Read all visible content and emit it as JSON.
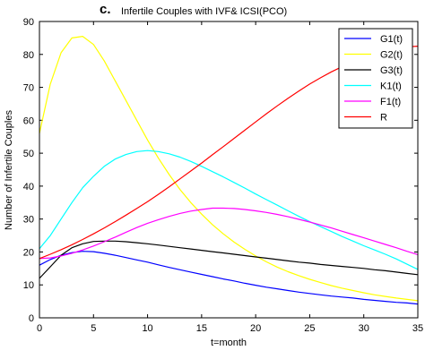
{
  "chart_data": {
    "type": "line",
    "panel_letter": "c.",
    "title": "Infertile Couples with  IVF& ICSI(PCO)",
    "xlabel": "t=month",
    "ylabel": "Number of Infertile Couples",
    "xlim": [
      0,
      35
    ],
    "ylim": [
      0,
      90
    ],
    "x_ticks": [
      0,
      5,
      10,
      15,
      20,
      25,
      30,
      35
    ],
    "y_ticks": [
      0,
      10,
      20,
      30,
      40,
      50,
      60,
      70,
      80,
      90
    ],
    "grid": false,
    "legend_position": "top-right",
    "x": [
      0,
      1,
      2,
      3,
      4,
      5,
      6,
      7,
      8,
      9,
      10,
      11,
      12,
      13,
      14,
      15,
      16,
      17,
      18,
      19,
      20,
      21,
      22,
      23,
      24,
      25,
      26,
      27,
      28,
      29,
      30,
      31,
      32,
      33,
      34,
      35
    ],
    "series": [
      {
        "name": "G1(t)",
        "color": "#0000ff",
        "values": [
          16,
          17.7,
          19,
          19.8,
          20.2,
          20.1,
          19.6,
          19,
          18.3,
          17.6,
          16.9,
          16.1,
          15.3,
          14.6,
          13.9,
          13.2,
          12.5,
          11.8,
          11.2,
          10.5,
          9.9,
          9.3,
          8.8,
          8.3,
          7.8,
          7.4,
          7,
          6.6,
          6.3,
          6,
          5.6,
          5.3,
          5,
          4.7,
          4.5,
          4.2
        ]
      },
      {
        "name": "G2(t)",
        "color": "#ffff00",
        "values": [
          56,
          71,
          80.5,
          85,
          85.5,
          83,
          78,
          72,
          66,
          60,
          54,
          48.5,
          43.5,
          39,
          35,
          31.5,
          28.3,
          25.5,
          23,
          20.8,
          18.8,
          17,
          15.4,
          14,
          12.8,
          11.7,
          10.7,
          9.8,
          9,
          8.3,
          7.6,
          7,
          6.5,
          6,
          5.6,
          5.2
        ]
      },
      {
        "name": "G3(t)",
        "color": "#000000",
        "values": [
          12,
          15.5,
          19,
          21.3,
          22.5,
          23.2,
          23.3,
          23.3,
          23.1,
          22.8,
          22.5,
          22.1,
          21.7,
          21.3,
          20.9,
          20.5,
          20.1,
          19.7,
          19.3,
          18.9,
          18.5,
          18.1,
          17.7,
          17.3,
          16.9,
          16.6,
          16.2,
          15.9,
          15.6,
          15.3,
          15,
          14.6,
          14.3,
          13.9,
          13.5,
          13.1
        ]
      },
      {
        "name": "K1(t)",
        "color": "#00ffff",
        "values": [
          21,
          25,
          30,
          35,
          39.5,
          43,
          46,
          48.2,
          49.6,
          50.5,
          50.8,
          50.5,
          49.8,
          48.8,
          47.5,
          46,
          44.4,
          42.8,
          41.1,
          39.4,
          37.6,
          35.9,
          34.2,
          32.5,
          30.8,
          29.2,
          27.7,
          26.2,
          24.7,
          23.3,
          21.9,
          20.6,
          19.3,
          17.9,
          16.3,
          14.7
        ]
      },
      {
        "name": "F1(t)",
        "color": "#ff00ff",
        "values": [
          18,
          18.2,
          18.8,
          19.6,
          20.6,
          21.8,
          23.1,
          24.5,
          26,
          27.4,
          28.7,
          29.8,
          30.8,
          31.7,
          32.4,
          32.9,
          33.3,
          33.3,
          33.2,
          32.9,
          32.5,
          32,
          31.4,
          30.7,
          29.9,
          29.1,
          28.2,
          27.3,
          26.3,
          25.3,
          24.3,
          23.3,
          22.3,
          21.3,
          20.2,
          19.2
        ]
      },
      {
        "name": "R",
        "color": "#ff0000",
        "values": [
          18,
          19.3,
          20.7,
          22.2,
          23.8,
          25.5,
          27.3,
          29.2,
          31.2,
          33.2,
          35.3,
          37.5,
          39.8,
          42.2,
          44.6,
          47,
          49.5,
          52,
          54.5,
          57,
          59.5,
          62,
          64.4,
          66.7,
          68.9,
          71,
          72.9,
          74.7,
          76.3,
          77.8,
          79,
          80.1,
          81,
          81.8,
          82.3,
          82.5
        ]
      }
    ]
  }
}
